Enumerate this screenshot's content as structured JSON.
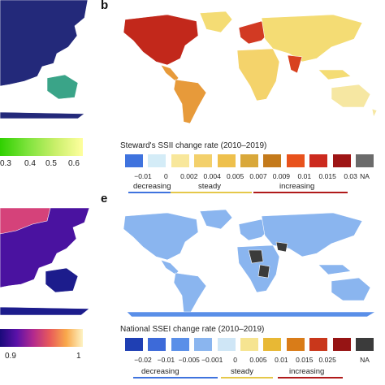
{
  "panel_letters": {
    "b": "b",
    "e": "e"
  },
  "left_top_legend": {
    "ticks": [
      "0.3",
      "0.4",
      "0.5",
      "0.6"
    ],
    "gradient": [
      "#2fd000",
      "#7ee33c",
      "#c9ef6a",
      "#ffff9f"
    ]
  },
  "left_bottom_legend": {
    "ticks": [
      "0.9",
      "1"
    ],
    "gradient": [
      "#1a0a7a",
      "#5a11a8",
      "#b2298e",
      "#e85a5a",
      "#f9a94b",
      "#fdf3c4"
    ]
  },
  "panel_b": {
    "legend_title": "Steward's SSII change rate (2010–2019)",
    "swatches": [
      "#3f73de",
      "#d4ecf7",
      "#f8e79b",
      "#f3d06b",
      "#eec04c",
      "#d9a83a",
      "#c47a1b",
      "#e8521c",
      "#cc2a1e",
      "#9e1515",
      "#6b6b6b"
    ],
    "tick_labels": [
      "−0.01",
      "0",
      "0.002",
      "0.004",
      "0.005",
      "0.007",
      "0.009",
      "0.01",
      "0.015",
      "0.03",
      "NA"
    ],
    "trend_labels": {
      "decreasing": "decreasing",
      "steady": "steady",
      "increasing": "increasing"
    },
    "trend_colors": {
      "decreasing": "#3f73de",
      "steady": "#e5c84a",
      "increasing": "#b01a1a"
    }
  },
  "panel_e": {
    "legend_title": "National SSEI change rate (2010–2019)",
    "swatches": [
      "#1f3fb3",
      "#3d6ad9",
      "#5a8fe8",
      "#8ab5ef",
      "#cfe6f6",
      "#f6e491",
      "#e8b834",
      "#d97c18",
      "#c9371b",
      "#961414",
      "#3b3b3b"
    ],
    "tick_labels": [
      "−0.02",
      "−0.01",
      "−0.005",
      "−0.001",
      "0",
      "0.005",
      "0.01",
      "0.015",
      "0.025",
      "NA"
    ],
    "trend_labels": {
      "decreasing": "decreasing",
      "steady": "steady",
      "increasing": "increasing"
    },
    "trend_colors": {
      "decreasing": "#3f73de",
      "steady": "#e5c84a",
      "increasing": "#b01a1a"
    }
  },
  "map_colors": {
    "panel_a_land": "#23297a",
    "panel_a_oceania": "#3aa488",
    "panel_b_north_america": "#c2281b",
    "panel_b_south_america": "#e79a3a",
    "panel_b_eurasia": "#f4dc74",
    "panel_b_africa": "#f4d36b",
    "panel_b_india": "#d8411f",
    "panel_b_europe": "#d23a23",
    "panel_b_australia": "#f6e7a2",
    "panel_b_antarctica": "#ffffff",
    "panel_d_land": "#4a12a0",
    "panel_d_europe_asia": "#d5427a",
    "panel_d_oceania": "#1c1c8c",
    "panel_e_land": "#8ab5ef",
    "panel_e_africa_mix": "#3b3b3b",
    "panel_e_antarctica": "#5a8fe8"
  }
}
